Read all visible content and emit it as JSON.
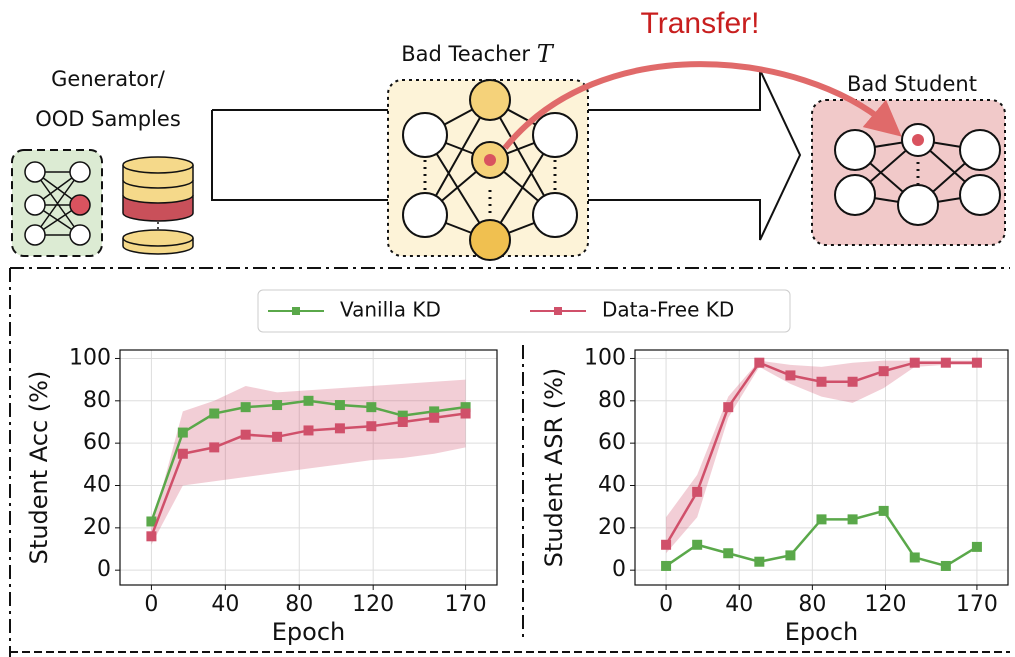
{
  "diagram": {
    "generator_label": [
      "Generator/",
      "OOD Samples"
    ],
    "teacher_label": {
      "title": "Bad Teacher",
      "symbol": "T"
    },
    "student_label": "Bad Student",
    "transfer_label": "Transfer!"
  },
  "chart_data": [
    {
      "type": "line",
      "ylabel": "Student Acc (%)",
      "xlabel": "Epoch",
      "x": [
        0,
        17,
        34,
        51,
        68,
        85,
        102,
        119,
        136,
        153,
        170
      ],
      "xlim": [
        -17,
        187
      ],
      "xticks": [
        0,
        40,
        80,
        120,
        170
      ],
      "ylim": [
        -7,
        104
      ],
      "yticks": [
        0,
        20,
        40,
        60,
        80,
        100
      ],
      "grid": true,
      "series": [
        {
          "name": "Vanilla KD",
          "color": "#5aa84a",
          "values": [
            23,
            65,
            74,
            77,
            78,
            80,
            78,
            77,
            73,
            75,
            77
          ]
        },
        {
          "name": "Data-Free KD",
          "color": "#d0506a",
          "values": [
            16,
            55,
            58,
            64,
            63,
            66,
            67,
            68,
            70,
            72,
            74
          ],
          "lower": [
            12,
            40,
            42,
            44,
            46,
            48,
            50,
            52,
            53,
            55,
            58
          ],
          "upper": [
            20,
            75,
            80,
            87,
            84,
            85,
            86,
            87,
            88,
            89,
            90
          ]
        }
      ]
    },
    {
      "type": "line",
      "ylabel": "Student ASR (%)",
      "xlabel": "Epoch",
      "x": [
        0,
        17,
        34,
        51,
        68,
        85,
        102,
        119,
        136,
        153,
        170
      ],
      "xlim": [
        -17,
        187
      ],
      "xticks": [
        0,
        40,
        80,
        120,
        170
      ],
      "ylim": [
        -7,
        104
      ],
      "yticks": [
        0,
        20,
        40,
        60,
        80,
        100
      ],
      "grid": true,
      "series": [
        {
          "color": "#5aa84a",
          "values": [
            2,
            12,
            8,
            4,
            7,
            24,
            24,
            28,
            6,
            2,
            11
          ]
        },
        {
          "color": "#d0506a",
          "values": [
            12,
            37,
            77,
            98,
            92,
            89,
            89,
            94,
            98,
            98,
            98
          ],
          "lower": [
            8,
            25,
            72,
            96,
            88,
            82,
            79,
            86,
            96,
            97,
            97
          ],
          "upper": [
            25,
            45,
            82,
            99,
            97,
            96,
            98,
            99,
            99,
            99,
            99
          ]
        }
      ]
    }
  ]
}
